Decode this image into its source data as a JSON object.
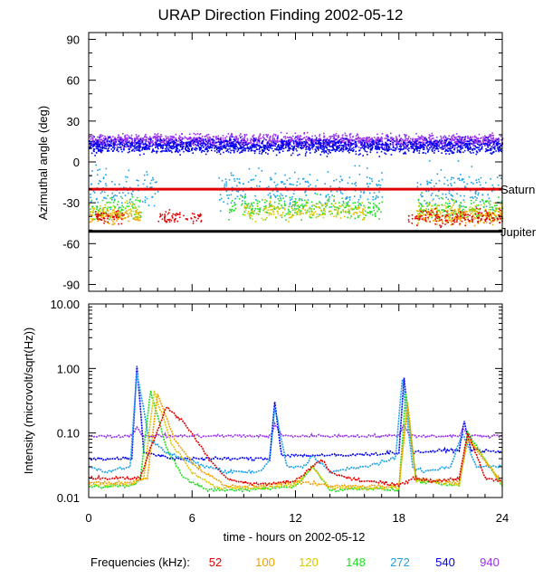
{
  "title": "URAP Direction Finding  2002-05-12",
  "colors": {
    "52": "#e00000",
    "100": "#f0a000",
    "120": "#d8c800",
    "148": "#22dd22",
    "272": "#1ea0e6",
    "540": "#0000ee",
    "940": "#9933ee"
  },
  "legend": {
    "label": "Frequencies (kHz):",
    "items": [
      {
        "key": "52",
        "label": "52"
      },
      {
        "key": "100",
        "label": "100"
      },
      {
        "key": "120",
        "label": "120"
      },
      {
        "key": "148",
        "label": "148"
      },
      {
        "key": "272",
        "label": "272"
      },
      {
        "key": "540",
        "label": "540"
      },
      {
        "key": "940",
        "label": "940"
      }
    ]
  },
  "chart_data": [
    {
      "type": "scatter",
      "panel": "top",
      "ylabel": "Azimuthal angle (deg)",
      "xlim": [
        0,
        24
      ],
      "ylim": [
        -95,
        95
      ],
      "yticks": [
        90,
        60,
        30,
        0,
        -30,
        -60,
        -90
      ],
      "reference_lines": [
        {
          "name": "Saturn",
          "y": -20,
          "color": "#e00000"
        },
        {
          "name": "Jupiter",
          "y": -51,
          "color": "#000000"
        }
      ],
      "series": [
        {
          "name": "940",
          "center": 16,
          "spread": 7,
          "segments": [
            [
              0,
              24
            ]
          ]
        },
        {
          "name": "540",
          "center": 12,
          "spread": 8,
          "segments": [
            [
              0,
              24
            ]
          ]
        },
        {
          "name": "272",
          "center": -20,
          "spread": 22,
          "segments": [
            [
              0,
              4
            ],
            [
              7.5,
              17
            ],
            [
              19,
              24
            ]
          ]
        },
        {
          "name": "148",
          "center": -33,
          "spread": 12,
          "segments": [
            [
              0,
              3
            ],
            [
              8,
              17
            ],
            [
              19,
              24
            ]
          ]
        },
        {
          "name": "120",
          "center": -36,
          "spread": 10,
          "segments": [
            [
              0,
              3
            ],
            [
              9,
              16
            ],
            [
              19,
              24
            ]
          ]
        },
        {
          "name": "100",
          "center": -40,
          "spread": 8,
          "segments": [
            [
              0,
              3
            ],
            [
              19,
              24
            ]
          ]
        },
        {
          "name": "52",
          "center": -40,
          "spread": 8,
          "segments": [
            [
              0.3,
              2
            ],
            [
              4,
              6.5
            ],
            [
              18.5,
              24
            ]
          ]
        }
      ]
    },
    {
      "type": "line",
      "panel": "bottom",
      "xlabel": "time - hours on 2002-05-12",
      "ylabel": "Intensity (microvolt/sqrt(Hz))",
      "xlim": [
        0,
        24
      ],
      "ylim": [
        0.01,
        10
      ],
      "yscale": "log",
      "yticks": [
        {
          "v": 10,
          "label": "10.00"
        },
        {
          "v": 1,
          "label": "1.00"
        },
        {
          "v": 0.1,
          "label": "0.10"
        },
        {
          "v": 0.01,
          "label": "0.01"
        }
      ],
      "xticks": [
        {
          "v": 0,
          "label": "0"
        },
        {
          "v": 6,
          "label": "6"
        },
        {
          "v": 12,
          "label": "12"
        },
        {
          "v": 18,
          "label": "18"
        },
        {
          "v": 24,
          "label": "24"
        }
      ],
      "series": [
        {
          "name": "940",
          "x": [
            0,
            2.5,
            2.8,
            3.2,
            6,
            10.6,
            10.8,
            11.2,
            18,
            18.3,
            18.6,
            21.5,
            21.7,
            22,
            24
          ],
          "y": [
            0.09,
            0.09,
            0.12,
            0.09,
            0.09,
            0.09,
            0.14,
            0.09,
            0.09,
            0.14,
            0.09,
            0.09,
            0.12,
            0.09,
            0.09
          ]
        },
        {
          "name": "540",
          "x": [
            0,
            2.5,
            2.8,
            3.2,
            5,
            10.5,
            10.8,
            11.2,
            15,
            18,
            18.3,
            18.8,
            21.5,
            21.8,
            22.2,
            24
          ],
          "y": [
            0.04,
            0.04,
            1.1,
            0.05,
            0.04,
            0.04,
            0.3,
            0.045,
            0.045,
            0.05,
            0.7,
            0.05,
            0.055,
            0.15,
            0.055,
            0.05
          ]
        },
        {
          "name": "272",
          "x": [
            0,
            1,
            2.4,
            2.8,
            3.5,
            4.5,
            6,
            8,
            10,
            10.5,
            10.8,
            11.5,
            12.5,
            13,
            14,
            16,
            17.8,
            18.2,
            18.8,
            19.5,
            21,
            21.7,
            22.5,
            24
          ],
          "y": [
            0.03,
            0.025,
            0.03,
            0.9,
            0.08,
            0.05,
            0.035,
            0.025,
            0.025,
            0.04,
            0.25,
            0.03,
            0.03,
            0.045,
            0.025,
            0.03,
            0.04,
            0.7,
            0.03,
            0.025,
            0.03,
            0.1,
            0.03,
            0.03
          ]
        },
        {
          "name": "148",
          "x": [
            0,
            2.5,
            3.0,
            3.6,
            4.5,
            5.5,
            7,
            9,
            12,
            13,
            14,
            16,
            18,
            18.4,
            19,
            21.5,
            22,
            24
          ],
          "y": [
            0.015,
            0.015,
            0.02,
            0.45,
            0.06,
            0.02,
            0.013,
            0.013,
            0.015,
            0.03,
            0.013,
            0.014,
            0.013,
            0.4,
            0.018,
            0.015,
            0.1,
            0.015
          ]
        },
        {
          "name": "120",
          "x": [
            0,
            2.5,
            3.2,
            3.8,
            4.8,
            6,
            7.5,
            10,
            12,
            13,
            14,
            18,
            18.5,
            19,
            21.5,
            22,
            24
          ],
          "y": [
            0.016,
            0.016,
            0.02,
            0.45,
            0.07,
            0.025,
            0.014,
            0.014,
            0.016,
            0.03,
            0.014,
            0.014,
            0.3,
            0.018,
            0.016,
            0.09,
            0.016
          ]
        },
        {
          "name": "100",
          "x": [
            0,
            2.5,
            3.4,
            4.0,
            5,
            6.2,
            8,
            10,
            12,
            14,
            18,
            18.5,
            19,
            21.5,
            22,
            24
          ],
          "y": [
            0.017,
            0.017,
            0.02,
            0.4,
            0.08,
            0.03,
            0.015,
            0.015,
            0.018,
            0.015,
            0.015,
            0.25,
            0.02,
            0.017,
            0.08,
            0.017
          ]
        },
        {
          "name": "52",
          "x": [
            0,
            3,
            3.5,
            4.5,
            5.5,
            7,
            8,
            9,
            10,
            12,
            13.5,
            14,
            15,
            16,
            18,
            19,
            20,
            21.5,
            22,
            23,
            24
          ],
          "y": [
            0.02,
            0.02,
            0.05,
            0.25,
            0.15,
            0.04,
            0.02,
            0.017,
            0.016,
            0.018,
            0.04,
            0.025,
            0.02,
            0.018,
            0.016,
            0.02,
            0.018,
            0.02,
            0.1,
            0.02,
            0.018
          ]
        }
      ]
    }
  ]
}
